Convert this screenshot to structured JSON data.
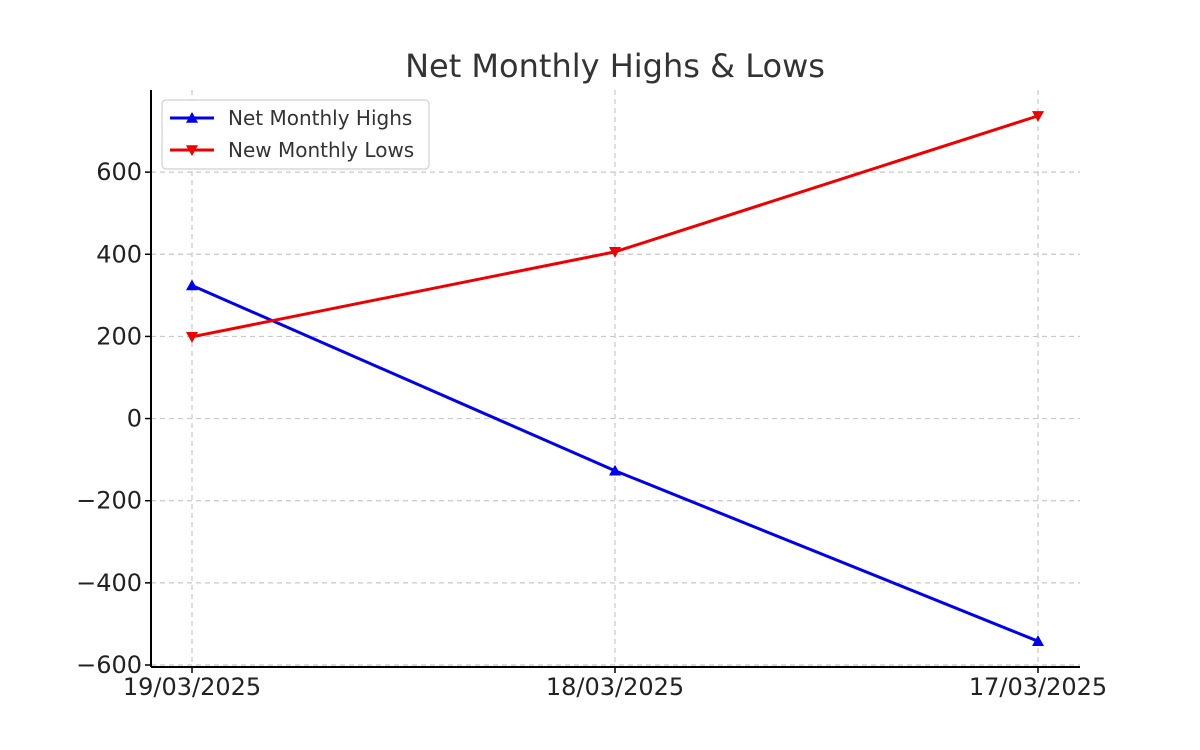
{
  "chart_data": {
    "type": "line",
    "title": "Net Monthly Highs & Lows",
    "xlabel": "",
    "ylabel": "",
    "categories": [
      "19/03/2025",
      "18/03/2025",
      "17/03/2025"
    ],
    "series": [
      {
        "name": "Net Monthly Highs",
        "values": [
          324,
          -127,
          -542
        ],
        "color": "#0000ee",
        "marker": "triangle-up"
      },
      {
        "name": "New Monthly Lows",
        "values": [
          199,
          406,
          737
        ],
        "color": "#ee0000",
        "marker": "triangle-down"
      }
    ],
    "ylim": [
      -600,
      800
    ],
    "yticks": [
      -600,
      -400,
      -200,
      0,
      200,
      400,
      600
    ],
    "ytick_labels": [
      "−600",
      "−400",
      "−200",
      "0",
      "200",
      "400",
      "600"
    ],
    "grid": true,
    "legend_position": "top-left"
  }
}
